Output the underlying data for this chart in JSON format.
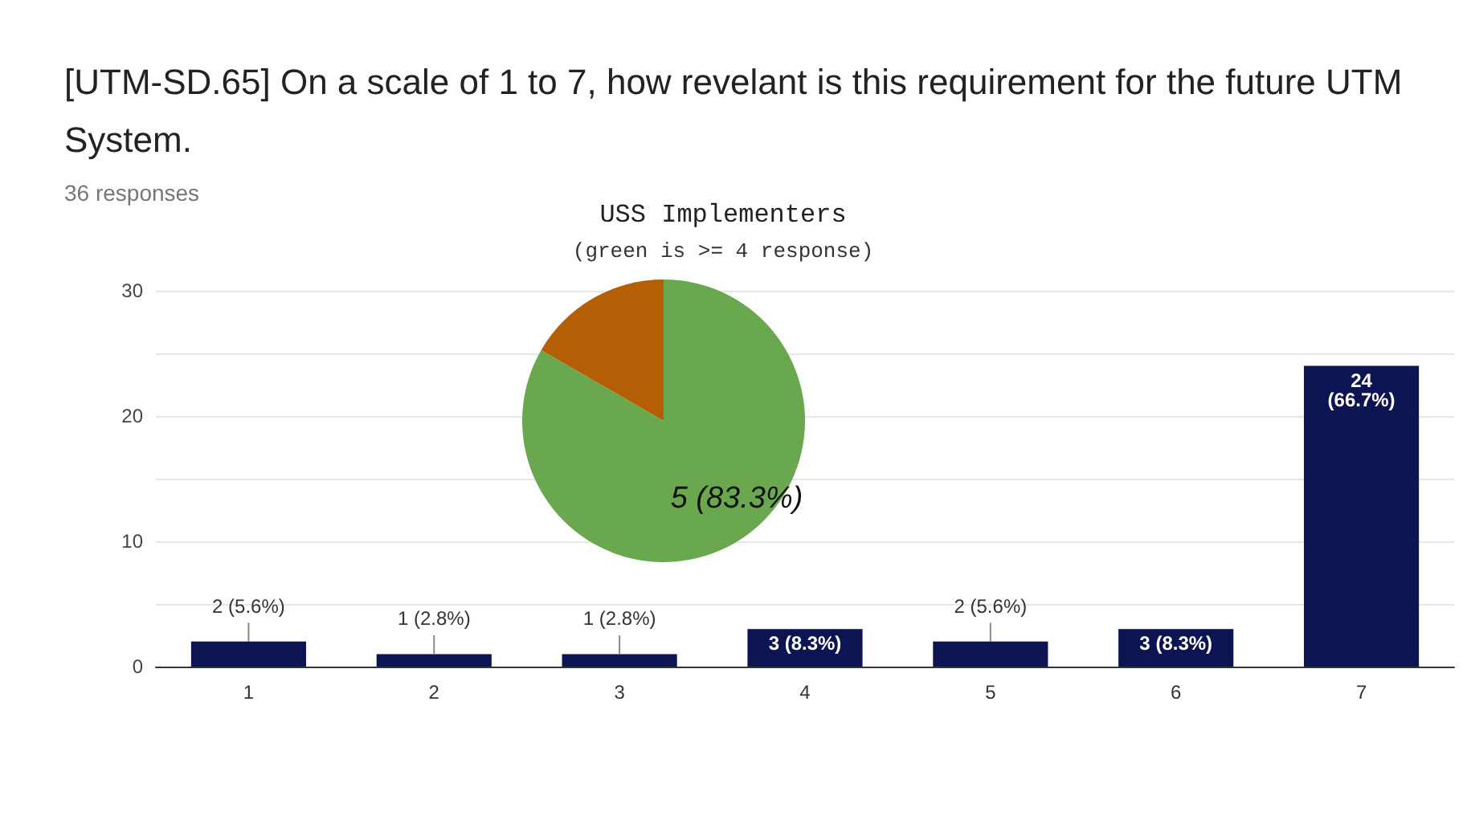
{
  "chart_data": [
    {
      "type": "bar",
      "title": "[UTM-SD.65] On a scale of 1 to 7, how revelant is this requirement for the future UTM System.",
      "subtitle": "36 responses",
      "categories": [
        "1",
        "2",
        "3",
        "4",
        "5",
        "6",
        "7"
      ],
      "values": [
        2,
        1,
        1,
        3,
        2,
        3,
        24
      ],
      "value_labels": [
        "2 (5.6%)",
        "1 (2.8%)",
        "1 (2.8%)",
        "3 (8.3%)",
        "2 (5.6%)",
        "3 (8.3%)",
        "24\n(66.7%)"
      ],
      "color": "#0d1452",
      "ylim": [
        0,
        30
      ],
      "yticks": [
        0,
        10,
        20,
        30
      ],
      "grid": "y"
    },
    {
      "type": "pie",
      "title": "USS Implementers",
      "subtitle": "(green is >= 4 response)",
      "categories": [
        null,
        null
      ],
      "values": [
        5,
        1
      ],
      "colors": [
        "#6aa84f",
        "#b45f06"
      ],
      "value_labels": [
        "5 (83.3%)",
        null
      ]
    }
  ]
}
